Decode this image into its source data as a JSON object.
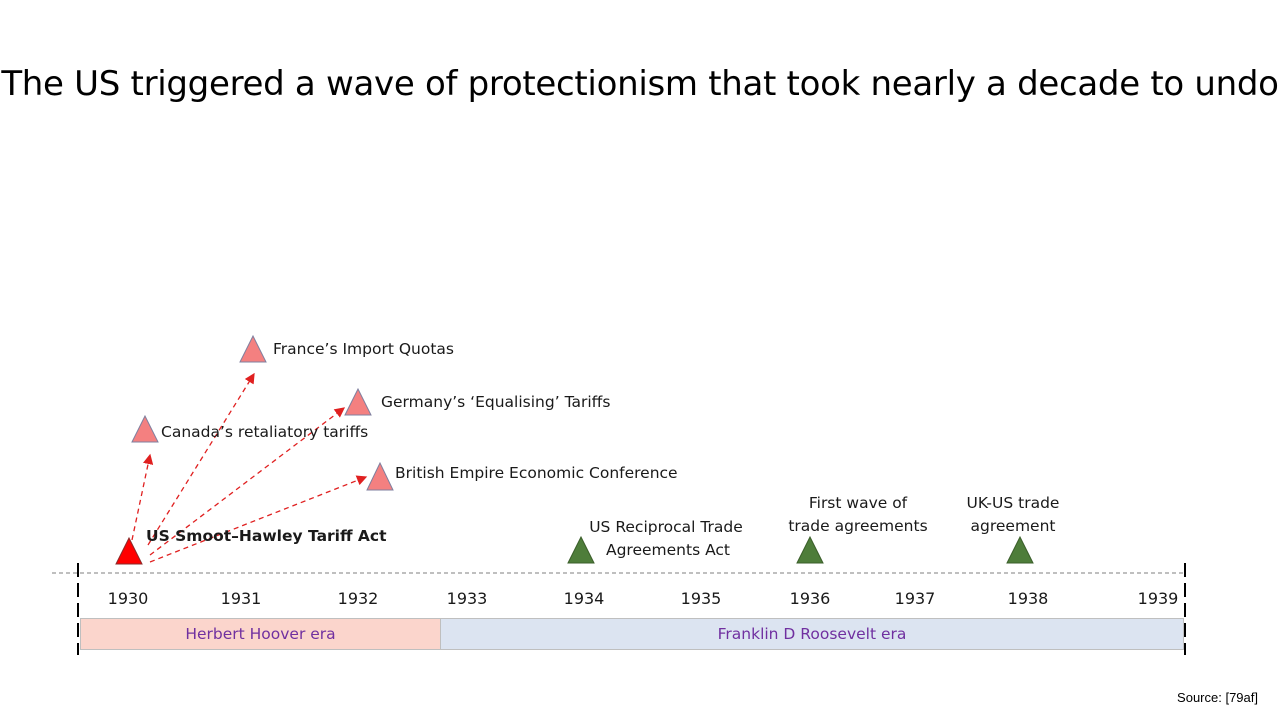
{
  "title": "The US triggered a wave of protectionism that took nearly a decade to undo",
  "colors": {
    "protection": "#f48080",
    "trigger": "#ff0000",
    "liberalisation": "#4e7d3a",
    "arrow": "#e02020",
    "hoover_band": "#fbd5cc",
    "roosevelt_band": "#dce4f1",
    "era_text": "#7030a0"
  },
  "years": [
    "1930",
    "1931",
    "1932",
    "1933",
    "1934",
    "1935",
    "1936",
    "1937",
    "1938",
    "1939"
  ],
  "events": {
    "trigger": "US Smoot–Hawley Tariff Act",
    "canada": "Canada’s retaliatory tariffs",
    "france": "France’s Import Quotas",
    "germany": "Germany’s ‘Equalising’ Tariffs",
    "britain": "British Empire Economic Conference",
    "rta_line1": "US Reciprocal Trade",
    "rta_line2": "Agreements Act",
    "wave_line1": "First wave of",
    "wave_line2": "trade agreements",
    "ukus_line1": "UK-US trade",
    "ukus_line2": "agreement"
  },
  "eras": {
    "hoover": "Herbert Hoover era",
    "roosevelt": "Franklin D Roosevelt era"
  },
  "source": "Source: [79af]"
}
